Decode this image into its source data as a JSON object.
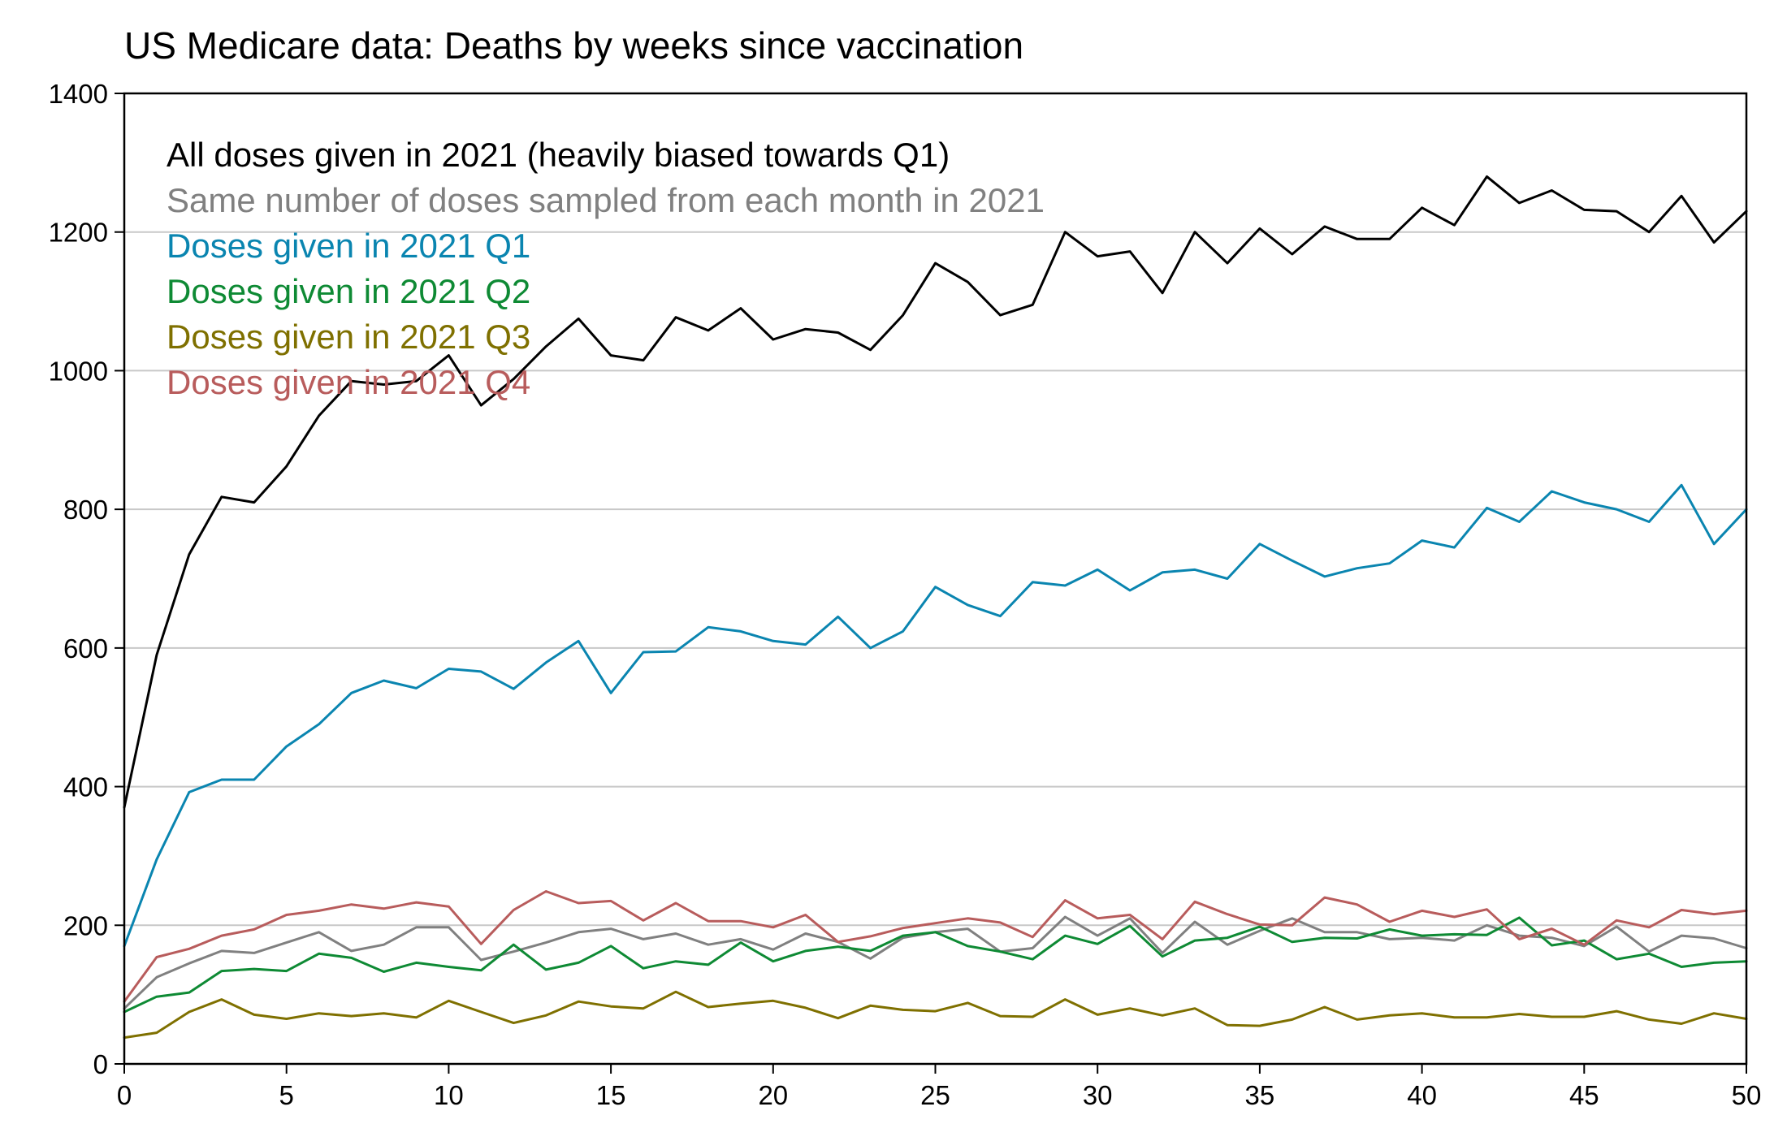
{
  "chart_data": {
    "type": "line",
    "title": "US Medicare data: Deaths by weeks since vaccination",
    "xlabel": "",
    "ylabel": "",
    "xlim": [
      0,
      50
    ],
    "ylim": [
      0,
      1400
    ],
    "xticks": [
      0,
      5,
      10,
      15,
      20,
      25,
      30,
      35,
      40,
      45,
      50
    ],
    "yticks": [
      0,
      200,
      400,
      600,
      800,
      1000,
      1200,
      1400
    ],
    "grid": "horizontal",
    "legend_position": "top-left",
    "x": [
      0,
      1,
      2,
      3,
      4,
      5,
      6,
      7,
      8,
      9,
      10,
      11,
      12,
      13,
      14,
      15,
      16,
      17,
      18,
      19,
      20,
      21,
      22,
      23,
      24,
      25,
      26,
      27,
      28,
      29,
      30,
      31,
      32,
      33,
      34,
      35,
      36,
      37,
      38,
      39,
      40,
      41,
      42,
      43,
      44,
      45,
      46,
      47,
      48,
      49,
      50
    ],
    "series": [
      {
        "name": "All doses given in 2021 (heavily biased towards Q1)",
        "color": "#000000",
        "values": [
          370,
          590,
          735,
          818,
          810,
          862,
          935,
          985,
          980,
          985,
          1022,
          950,
          988,
          1035,
          1075,
          1022,
          1015,
          1077,
          1058,
          1090,
          1045,
          1060,
          1055,
          1030,
          1080,
          1155,
          1128,
          1080,
          1095,
          1200,
          1165,
          1172,
          1112,
          1200,
          1155,
          1205,
          1168,
          1208,
          1190,
          1190,
          1235,
          1210,
          1280,
          1242,
          1260,
          1232,
          1230,
          1200,
          1252,
          1185,
          1230
        ]
      },
      {
        "name": "Same number of doses sampled from each month in 2021",
        "color": "#808080",
        "values": [
          80,
          125,
          145,
          163,
          160,
          175,
          190,
          163,
          172,
          197,
          197,
          150,
          162,
          175,
          190,
          195,
          180,
          188,
          172,
          180,
          165,
          188,
          176,
          152,
          182,
          190,
          195,
          162,
          167,
          212,
          185,
          210,
          160,
          205,
          172,
          192,
          210,
          190,
          190,
          180,
          182,
          178,
          200,
          185,
          182,
          170,
          198,
          162,
          185,
          181,
          167
        ]
      },
      {
        "name": "Doses given in 2021 Q1",
        "color": "#0a85b0",
        "values": [
          170,
          295,
          392,
          410,
          410,
          458,
          490,
          535,
          553,
          542,
          570,
          566,
          541,
          579,
          610,
          535,
          594,
          595,
          630,
          624,
          610,
          605,
          645,
          600,
          624,
          688,
          662,
          646,
          695,
          690,
          713,
          683,
          709,
          713,
          700,
          750,
          726,
          703,
          715,
          722,
          755,
          745,
          802,
          782,
          826,
          810,
          800,
          782,
          835,
          750,
          800
        ]
      },
      {
        "name": "Doses given in 2021 Q2",
        "color": "#0e8a34",
        "values": [
          75,
          97,
          103,
          134,
          137,
          134,
          159,
          153,
          133,
          146,
          140,
          135,
          172,
          136,
          146,
          170,
          138,
          148,
          143,
          175,
          148,
          163,
          169,
          163,
          185,
          190,
          170,
          162,
          151,
          185,
          173,
          199,
          155,
          178,
          182,
          198,
          176,
          182,
          181,
          194,
          185,
          187,
          186,
          211,
          171,
          178,
          151,
          159,
          140,
          146,
          148
        ]
      },
      {
        "name": "Doses given in 2021 Q3",
        "color": "#7f7000",
        "values": [
          38,
          45,
          75,
          93,
          71,
          65,
          73,
          69,
          73,
          67,
          91,
          75,
          59,
          70,
          90,
          83,
          80,
          104,
          82,
          87,
          91,
          81,
          66,
          84,
          78,
          76,
          88,
          69,
          68,
          93,
          71,
          80,
          70,
          80,
          56,
          55,
          64,
          82,
          64,
          70,
          73,
          67,
          67,
          72,
          68,
          68,
          76,
          64,
          58,
          73,
          65
        ]
      },
      {
        "name": "Doses given in 2021 Q4",
        "color": "#b85c5c",
        "values": [
          90,
          154,
          166,
          185,
          194,
          215,
          221,
          230,
          224,
          233,
          227,
          173,
          222,
          249,
          232,
          235,
          207,
          232,
          206,
          206,
          197,
          215,
          176,
          184,
          196,
          203,
          210,
          204,
          183,
          236,
          210,
          215,
          180,
          234,
          216,
          201,
          200,
          240,
          230,
          205,
          221,
          212,
          223,
          180,
          195,
          172,
          207,
          197,
          222,
          216,
          221
        ]
      }
    ]
  }
}
